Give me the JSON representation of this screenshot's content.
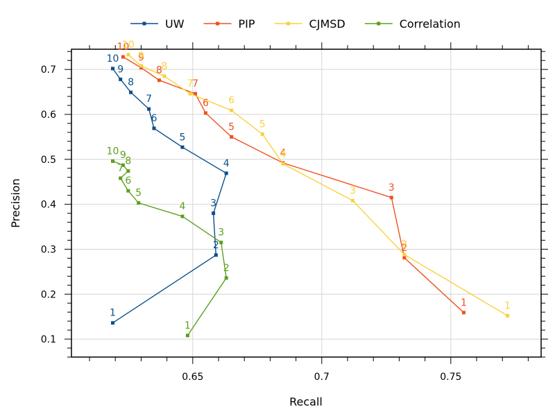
{
  "chart_data": {
    "type": "line",
    "title": "",
    "xlabel": "Recall",
    "ylabel": "Precision",
    "xlim": [
      0.603,
      0.785
    ],
    "ylim": [
      0.06,
      0.745
    ],
    "x_ticks": [
      0.65,
      0.7,
      0.75
    ],
    "x_tick_labels": [
      "0.65",
      "0.7",
      "0.75"
    ],
    "y_ticks": [
      0.1,
      0.2,
      0.3,
      0.4,
      0.5,
      0.6,
      0.7
    ],
    "y_tick_labels": [
      "0.1",
      "0.2",
      "0.3",
      "0.4",
      "0.5",
      "0.6",
      "0.7"
    ],
    "grid": true,
    "legend_position": "top",
    "series": [
      {
        "name": "UW",
        "color": "#0a4f8c",
        "point_labels": [
          "1",
          "2",
          "3",
          "4",
          "5",
          "6",
          "7",
          "8",
          "9",
          "10"
        ],
        "x": [
          0.619,
          0.659,
          0.658,
          0.663,
          0.646,
          0.635,
          0.633,
          0.626,
          0.622,
          0.619
        ],
        "y": [
          0.136,
          0.287,
          0.38,
          0.469,
          0.527,
          0.569,
          0.612,
          0.649,
          0.678,
          0.702
        ]
      },
      {
        "name": "PIP",
        "color": "#f0501e",
        "point_labels": [
          "1",
          "2",
          "3",
          "4",
          "5",
          "6",
          "7",
          "8",
          "9",
          "10"
        ],
        "x": [
          0.755,
          0.732,
          0.727,
          0.685,
          0.665,
          0.655,
          0.651,
          0.637,
          0.63,
          0.623
        ],
        "y": [
          0.159,
          0.281,
          0.415,
          0.492,
          0.55,
          0.603,
          0.646,
          0.676,
          0.704,
          0.728
        ]
      },
      {
        "name": "CJMSD",
        "color": "#fad13c",
        "point_labels": [
          "1",
          "2",
          "3",
          "4",
          "5",
          "6",
          "7",
          "8",
          "9",
          "10"
        ],
        "x": [
          0.772,
          0.732,
          0.712,
          0.685,
          0.677,
          0.665,
          0.649,
          0.639,
          0.63,
          0.625
        ],
        "y": [
          0.152,
          0.288,
          0.408,
          0.49,
          0.556,
          0.609,
          0.646,
          0.685,
          0.708,
          0.733
        ]
      },
      {
        "name": "Correlation",
        "color": "#5aa01e",
        "point_labels": [
          "1",
          "2",
          "3",
          "4",
          "5",
          "6",
          "7",
          "8",
          "9",
          "10"
        ],
        "x": [
          0.648,
          0.663,
          0.661,
          0.646,
          0.629,
          0.625,
          0.622,
          0.625,
          0.623,
          0.619
        ],
        "y": [
          0.108,
          0.236,
          0.315,
          0.373,
          0.403,
          0.43,
          0.458,
          0.474,
          0.487,
          0.496
        ]
      }
    ]
  }
}
